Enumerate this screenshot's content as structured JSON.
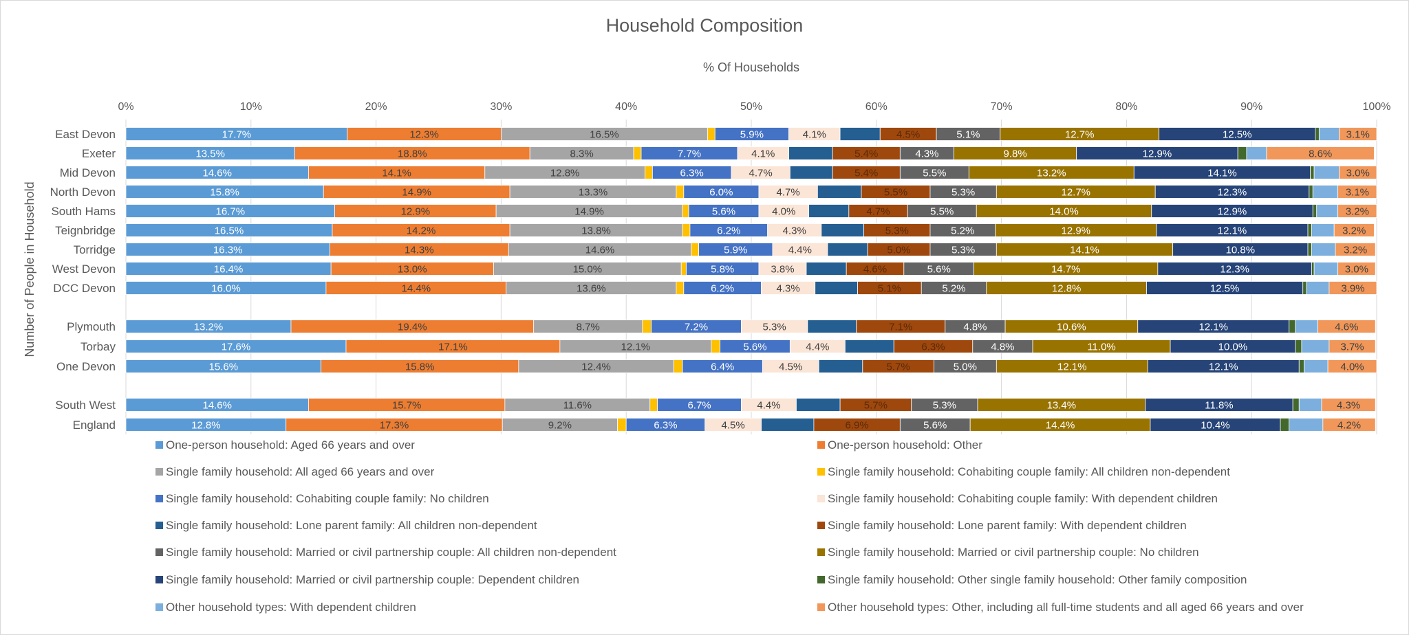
{
  "chart_data": {
    "type": "bar",
    "orientation": "horizontal-stacked-100",
    "title": "Household Composition",
    "xlabel": "% Of Households",
    "ylabel": "Number of People in Household",
    "xlim": [
      0,
      100
    ],
    "x_ticks": [
      "0%",
      "10%",
      "20%",
      "30%",
      "40%",
      "50%",
      "60%",
      "70%",
      "80%",
      "90%",
      "100%"
    ],
    "grid": true,
    "legend_position": "bottom",
    "categories": [
      "East Devon",
      "Exeter",
      "Mid Devon",
      "North Devon",
      "South Hams",
      "Teignbridge",
      "Torridge",
      "West Devon",
      "DCC Devon",
      "Plymouth",
      "Torbay",
      "One Devon",
      "South West",
      "England"
    ],
    "category_groups": [
      [
        0,
        1,
        2,
        3,
        4,
        5,
        6,
        7,
        8
      ],
      [
        9,
        10,
        11
      ],
      [
        12,
        13
      ]
    ],
    "series": [
      {
        "name": "One-person household: Aged 66 years and over",
        "color": "#5B9BD5",
        "label_color": "#ffffff",
        "labeled": true,
        "values": [
          17.7,
          13.5,
          14.6,
          15.8,
          16.7,
          16.5,
          16.3,
          16.4,
          16.0,
          13.2,
          17.6,
          15.6,
          14.6,
          12.8
        ]
      },
      {
        "name": "One-person household: Other",
        "color": "#ED7D31",
        "label_color": "#404040",
        "labeled": true,
        "values": [
          12.3,
          18.8,
          14.1,
          14.9,
          12.9,
          14.2,
          14.3,
          13.0,
          14.4,
          19.4,
          17.1,
          15.8,
          15.7,
          17.3
        ]
      },
      {
        "name": "Single family household: All aged 66 years and over",
        "color": "#A5A5A5",
        "label_color": "#404040",
        "labeled": true,
        "values": [
          16.5,
          8.3,
          12.8,
          13.3,
          14.9,
          13.8,
          14.6,
          15.0,
          13.6,
          8.7,
          12.1,
          12.4,
          11.6,
          9.2
        ]
      },
      {
        "name": "Single family household: Cohabiting couple family: All children non-dependent",
        "color": "#FFC000",
        "label_color": "#404040",
        "labeled": false,
        "values": [
          0.6,
          0.6,
          0.6,
          0.6,
          0.5,
          0.6,
          0.6,
          0.4,
          0.6,
          0.7,
          0.7,
          0.7,
          0.6,
          0.7
        ]
      },
      {
        "name": "Single family household: Cohabiting couple family: No children",
        "color": "#4472C4",
        "label_color": "#ffffff",
        "labeled": true,
        "values": [
          5.9,
          7.7,
          6.3,
          6.0,
          5.6,
          6.2,
          5.9,
          5.8,
          6.2,
          7.2,
          5.6,
          6.4,
          6.7,
          6.3
        ]
      },
      {
        "name": "Single family household: Cohabiting couple family: With dependent children",
        "color": "#FBE5D6",
        "label_color": "#404040",
        "labeled": true,
        "values": [
          4.1,
          4.1,
          4.7,
          4.7,
          4.0,
          4.3,
          4.4,
          3.8,
          4.3,
          5.3,
          4.4,
          4.5,
          4.4,
          4.5
        ]
      },
      {
        "name": "Single family household: Lone parent family: All children non-dependent",
        "color": "#255E91",
        "label_color": "#ffffff",
        "labeled": false,
        "values": [
          3.2,
          3.5,
          3.4,
          3.5,
          3.2,
          3.4,
          3.2,
          3.2,
          3.4,
          3.9,
          3.9,
          3.5,
          3.5,
          4.2
        ]
      },
      {
        "name": "Single family household: Lone parent family: With dependent children",
        "color": "#9E480E",
        "label_color": "#5a2a08",
        "labeled": true,
        "values": [
          4.5,
          5.4,
          5.4,
          5.5,
          4.7,
          5.3,
          5.0,
          4.6,
          5.1,
          7.1,
          6.3,
          5.7,
          5.7,
          6.9
        ]
      },
      {
        "name": "Single family household: Married or civil partnership couple: All children non-dependent",
        "color": "#636363",
        "label_color": "#ffffff",
        "labeled": true,
        "values": [
          5.1,
          4.3,
          5.5,
          5.3,
          5.5,
          5.2,
          5.3,
          5.6,
          5.2,
          4.8,
          4.8,
          5.0,
          5.3,
          5.6
        ]
      },
      {
        "name": "Single family household: Married or civil partnership couple: No children",
        "color": "#997300",
        "label_color": "#ffffff",
        "labeled": true,
        "values": [
          12.7,
          9.8,
          13.2,
          12.7,
          14.0,
          12.9,
          14.1,
          14.7,
          12.8,
          10.6,
          11.0,
          12.1,
          13.4,
          14.4
        ]
      },
      {
        "name": "Single family household: Married or civil partnership couple: Dependent children",
        "color": "#264478",
        "label_color": "#ffffff",
        "labeled": true,
        "values": [
          12.5,
          12.9,
          14.1,
          12.3,
          12.9,
          12.1,
          10.8,
          12.3,
          12.5,
          12.1,
          10.0,
          12.1,
          11.8,
          10.4
        ]
      },
      {
        "name": "Single family household: Other single family household: Other family composition",
        "color": "#43682B",
        "label_color": "#ffffff",
        "labeled": false,
        "values": [
          0.3,
          0.7,
          0.3,
          0.3,
          0.3,
          0.3,
          0.3,
          0.2,
          0.3,
          0.5,
          0.5,
          0.4,
          0.5,
          0.7
        ]
      },
      {
        "name": "Other household types: With dependent children",
        "color": "#7CAFDD",
        "label_color": "#404040",
        "labeled": false,
        "values": [
          1.6,
          1.6,
          2.0,
          2.0,
          1.7,
          1.8,
          1.9,
          1.9,
          1.8,
          1.8,
          2.2,
          1.9,
          1.8,
          2.7
        ]
      },
      {
        "name": "Other household types: Other, including all full-time students and all aged 66 years and over",
        "color": "#F1975A",
        "label_color": "#404040",
        "labeled": true,
        "values": [
          3.1,
          8.6,
          3.0,
          3.1,
          3.2,
          3.2,
          3.2,
          3.0,
          3.9,
          4.6,
          3.7,
          4.0,
          4.3,
          4.2
        ]
      }
    ]
  }
}
